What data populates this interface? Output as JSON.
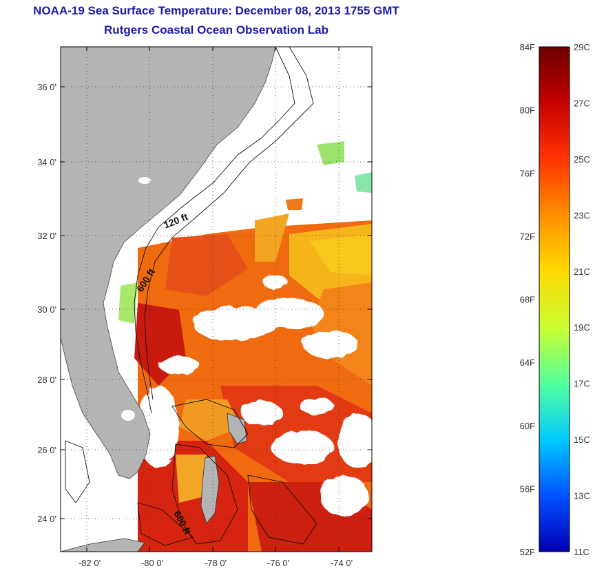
{
  "title": "NOAA-19 Sea Surface Temperature:  December 08, 2013 1755 GMT",
  "subtitle": "Rutgers Coastal Ocean Observation Lab",
  "map": {
    "lat_ticks": [
      "36 0'",
      "34 0'",
      "32 0'",
      "30 0'",
      "28 0'",
      "26 0'",
      "24 0'"
    ],
    "lon_ticks": [
      "-82 0'",
      "-80 0'",
      "-78 0'",
      "-76 0'",
      "-74 0'"
    ],
    "contour_labels": [
      "120 ft",
      "600 ft",
      "600 ft"
    ],
    "colors": {
      "land": "#b4b4b4",
      "warm": "#e23a12",
      "hot": "#c81a0e",
      "mid": "#f06a10",
      "cool": "#f8c81c",
      "cloud": "#ffffff"
    }
  },
  "colorbar": {
    "fahrenheit": [
      "84F",
      "80F",
      "76F",
      "72F",
      "68F",
      "64F",
      "60F",
      "56F",
      "52F"
    ],
    "celsius": [
      "29C",
      "27C",
      "25C",
      "23C",
      "21C",
      "19C",
      "17C",
      "15C",
      "13C",
      "11C"
    ],
    "colors": [
      "#6b0000",
      "#c40000",
      "#ff3200",
      "#ff8c00",
      "#ffd700",
      "#c8ff32",
      "#50ffa0",
      "#00c8ff",
      "#0050ff",
      "#0000b4"
    ]
  }
}
